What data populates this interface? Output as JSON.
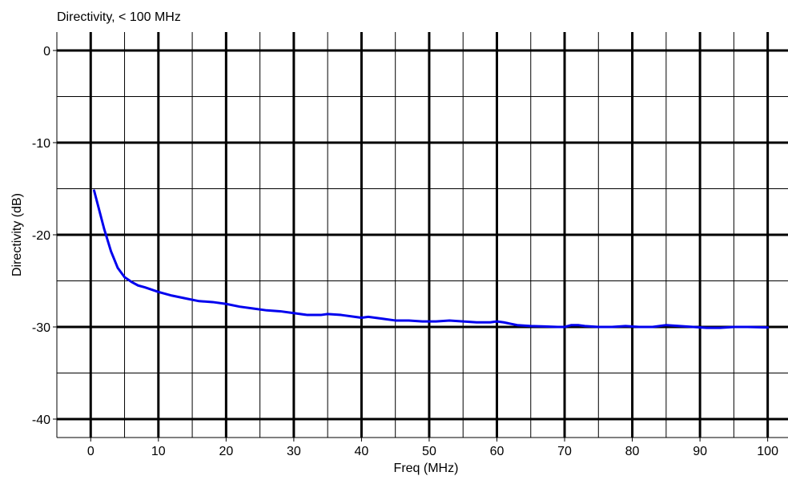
{
  "chart_data": {
    "type": "line",
    "title": "Directivity, < 100 MHz",
    "xlabel": "Freq (MHz)",
    "ylabel": "Directivity (dB)",
    "xlim": [
      -5,
      103
    ],
    "ylim": [
      -42,
      2
    ],
    "x_ticks": [
      "0",
      "10",
      "20",
      "30",
      "40",
      "50",
      "60",
      "70",
      "80",
      "90",
      "100"
    ],
    "y_ticks": [
      "0",
      "-10",
      "-20",
      "-30",
      "-40"
    ],
    "grid": true,
    "series": [
      {
        "color": "#0000ee",
        "points": [
          [
            0.5,
            -15.2
          ],
          [
            1,
            -16.6
          ],
          [
            2,
            -19.4
          ],
          [
            3,
            -21.8
          ],
          [
            4,
            -23.6
          ],
          [
            5,
            -24.6
          ],
          [
            6,
            -25.1
          ],
          [
            7,
            -25.5
          ],
          [
            8,
            -25.7
          ],
          [
            10,
            -26.2
          ],
          [
            12,
            -26.6
          ],
          [
            14,
            -26.9
          ],
          [
            16,
            -27.2
          ],
          [
            18,
            -27.3
          ],
          [
            20,
            -27.5
          ],
          [
            22,
            -27.8
          ],
          [
            24,
            -28.0
          ],
          [
            26,
            -28.2
          ],
          [
            28,
            -28.3
          ],
          [
            30,
            -28.5
          ],
          [
            32,
            -28.7
          ],
          [
            34,
            -28.7
          ],
          [
            35,
            -28.6
          ],
          [
            37,
            -28.7
          ],
          [
            39,
            -28.9
          ],
          [
            40,
            -29.0
          ],
          [
            41,
            -28.9
          ],
          [
            43,
            -29.1
          ],
          [
            45,
            -29.3
          ],
          [
            47,
            -29.3
          ],
          [
            49,
            -29.4
          ],
          [
            51,
            -29.4
          ],
          [
            53,
            -29.3
          ],
          [
            55,
            -29.4
          ],
          [
            57,
            -29.5
          ],
          [
            59,
            -29.5
          ],
          [
            60,
            -29.4
          ],
          [
            61,
            -29.5
          ],
          [
            63,
            -29.8
          ],
          [
            65,
            -29.9
          ],
          [
            67,
            -29.95
          ],
          [
            69,
            -30.0
          ],
          [
            70,
            -30.0
          ],
          [
            71,
            -29.8
          ],
          [
            72,
            -29.8
          ],
          [
            73,
            -29.9
          ],
          [
            75,
            -30.0
          ],
          [
            77,
            -30.0
          ],
          [
            79,
            -29.9
          ],
          [
            81,
            -30.0
          ],
          [
            83,
            -30.0
          ],
          [
            85,
            -29.8
          ],
          [
            87,
            -29.9
          ],
          [
            89,
            -30.0
          ],
          [
            91,
            -30.1
          ],
          [
            93,
            -30.1
          ],
          [
            95,
            -30.0
          ],
          [
            97,
            -30.0
          ],
          [
            100,
            -30.05
          ]
        ]
      }
    ]
  }
}
